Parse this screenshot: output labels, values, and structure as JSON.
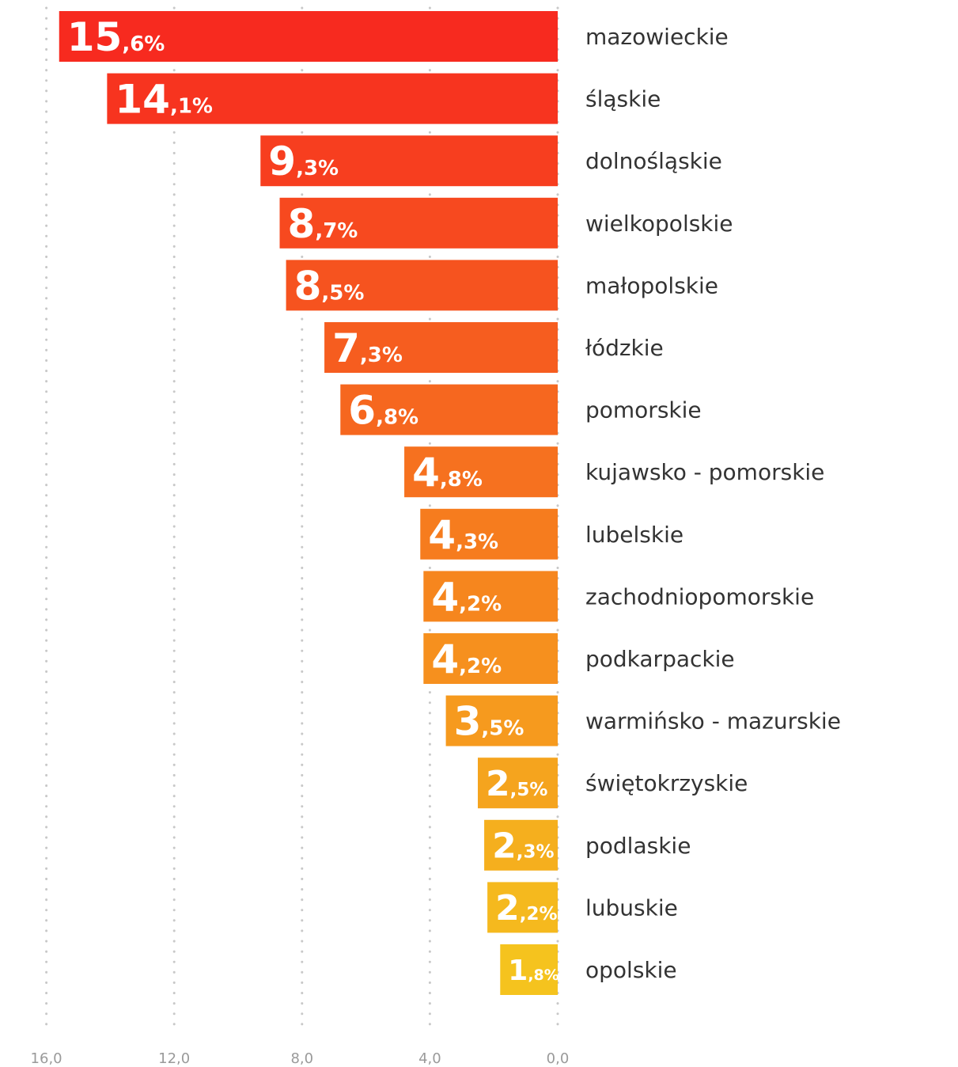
{
  "chart_data": {
    "type": "bar",
    "orientation": "horizontal",
    "direction": "right-to-left",
    "title": "",
    "xlabel": "",
    "ylabel": "",
    "xlim": [
      16,
      0
    ],
    "value_suffix": "%",
    "decimal_separator": ",",
    "grid": "vertical dotted",
    "categories": [
      "mazowieckie",
      "śląskie",
      "dolnośląskie",
      "wielkopolskie",
      "małopolskie",
      "łódzkie",
      "pomorskie",
      "kujawsko - pomorskie",
      "lubelskie",
      "zachodniopomorskie",
      "podkarpackie",
      "warmińsko - mazurskie",
      "świętokrzyskie",
      "podlaskie",
      "lubuskie",
      "opolskie"
    ],
    "values": [
      15.6,
      14.1,
      9.3,
      8.7,
      8.5,
      7.3,
      6.8,
      4.8,
      4.3,
      4.2,
      4.2,
      3.5,
      2.5,
      2.3,
      2.2,
      1.8
    ],
    "data_labels": [
      {
        "int": "15",
        "dec": ",6%"
      },
      {
        "int": "14",
        "dec": ",1%"
      },
      {
        "int": "9",
        "dec": ",3%"
      },
      {
        "int": "8",
        "dec": ",7%"
      },
      {
        "int": "8",
        "dec": ",5%"
      },
      {
        "int": "7",
        "dec": ",3%"
      },
      {
        "int": "6",
        "dec": ",8%"
      },
      {
        "int": "4",
        "dec": ",8%"
      },
      {
        "int": "4",
        "dec": ",3%"
      },
      {
        "int": "4",
        "dec": ",2%"
      },
      {
        "int": "4",
        "dec": ",2%"
      },
      {
        "int": "3",
        "dec": ",5%"
      },
      {
        "int": "2",
        "dec": ",5%"
      },
      {
        "int": "2",
        "dec": ",3%"
      },
      {
        "int": "2",
        "dec": ",2%"
      },
      {
        "int": "1",
        "dec": ",8%"
      }
    ],
    "x_ticks": [
      {
        "value": 16,
        "label": "16,0"
      },
      {
        "value": 12,
        "label": "12,0"
      },
      {
        "value": 8,
        "label": "8,0"
      },
      {
        "value": 4,
        "label": "4,0"
      },
      {
        "value": 0,
        "label": "0,0"
      }
    ],
    "colors": {
      "bar_top": "#f72a1f",
      "bar_bottom": "#f5c31e",
      "label_text": "#333333",
      "value_text": "#ffffff",
      "tick_text": "#9a9a9a",
      "grid": "#c8c8c8"
    }
  }
}
